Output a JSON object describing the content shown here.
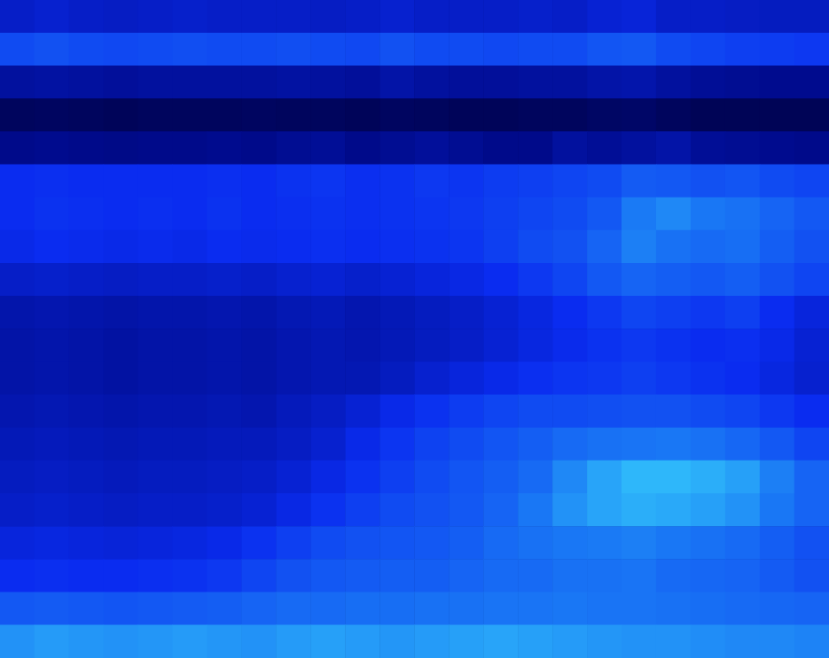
{
  "chart_data": {
    "type": "heatmap",
    "tick_labels": false,
    "color_range": [
      0,
      10
    ],
    "cells": [
      [
        4,
        4.2,
        4,
        3.9,
        4,
        4.1,
        4,
        4,
        4,
        3.9,
        4,
        4.2,
        4,
        4,
        4,
        4.1,
        4,
        4.3,
        4.4,
        4,
        4,
        3.9,
        3.8,
        3.8
      ],
      [
        6,
        6.2,
        6,
        5.9,
        6,
        6.1,
        6,
        6,
        6.1,
        6,
        5.9,
        6.2,
        6,
        6,
        5.9,
        6,
        6,
        6.3,
        6.4,
        6,
        5.8,
        5.6,
        5.5,
        5.4
      ],
      [
        3,
        3.1,
        3,
        2.9,
        3,
        3,
        3,
        3,
        3.1,
        3,
        2.9,
        3.2,
        3,
        2.9,
        2.9,
        3,
        3,
        3.2,
        3.3,
        3,
        2.8,
        2.7,
        2.6,
        2.6
      ],
      [
        1.2,
        1.3,
        1.2,
        1.1,
        1.2,
        1.2,
        1.2,
        1.3,
        1.2,
        1.2,
        1.1,
        1.3,
        1.2,
        1.1,
        1.1,
        1.2,
        1.2,
        1.4,
        1.5,
        1.2,
        1,
        1,
        1,
        1
      ],
      [
        2.5,
        2.6,
        2.5,
        2.4,
        2.5,
        2.5,
        2.6,
        2.5,
        2.7,
        2.8,
        2.5,
        2.7,
        2.9,
        2.7,
        2.5,
        2.5,
        3,
        2.8,
        3,
        3.2,
        2.8,
        2.7,
        2.6,
        2.5
      ],
      [
        5,
        5.1,
        5,
        5,
        5,
        5,
        5.1,
        5,
        5.2,
        5.3,
        5.1,
        5.2,
        5.4,
        5.3,
        5.5,
        5.6,
        5.8,
        6,
        6.5,
        6.4,
        6.2,
        6.3,
        6,
        5.8
      ],
      [
        5,
        5.2,
        5.1,
        5,
        5.1,
        5,
        5.2,
        5,
        5.1,
        5.2,
        5.1,
        5.2,
        5.3,
        5.4,
        5.6,
        5.8,
        6,
        6.4,
        7.5,
        7.8,
        7.4,
        7.2,
        6.8,
        6.4
      ],
      [
        4.8,
        5,
        4.9,
        4.8,
        4.9,
        4.8,
        5,
        4.9,
        5,
        5.1,
        5,
        5.1,
        5.2,
        5.3,
        5.6,
        6,
        6.2,
        6.8,
        7.6,
        7.2,
        7,
        7.1,
        6.6,
        6.2
      ],
      [
        4,
        4.1,
        4,
        3.9,
        4,
        4,
        4.1,
        4,
        4.2,
        4.3,
        4.1,
        4.3,
        4.5,
        4.7,
        5,
        5.4,
        5.8,
        6.4,
        6.8,
        6.6,
        6.4,
        6.6,
        6.2,
        5.8
      ],
      [
        3.3,
        3.4,
        3.3,
        3.2,
        3.3,
        3.3,
        3.4,
        3.3,
        3.5,
        3.6,
        3.4,
        3.6,
        3.8,
        4,
        4.3,
        4.6,
        5,
        5.4,
        5.8,
        5.6,
        5.4,
        5.6,
        5,
        4.5
      ],
      [
        3.2,
        3.3,
        3.2,
        3.1,
        3.2,
        3.2,
        3.3,
        3.2,
        3.4,
        3.5,
        3.4,
        3.6,
        3.8,
        4,
        4.3,
        4.6,
        4.9,
        5.2,
        5.4,
        5.2,
        5,
        5.1,
        4.8,
        4.3
      ],
      [
        3.2,
        3.3,
        3.2,
        3.1,
        3.2,
        3.2,
        3.3,
        3.2,
        3.4,
        3.5,
        3.5,
        3.8,
        4.2,
        4.5,
        4.8,
        5.1,
        5.3,
        5.4,
        5.6,
        5.4,
        5.2,
        5,
        4.6,
        4.2
      ],
      [
        3.4,
        3.5,
        3.4,
        3.3,
        3.4,
        3.4,
        3.5,
        3.4,
        3.7,
        3.9,
        4.3,
        4.8,
        5.2,
        5.5,
        5.8,
        6,
        6,
        6.1,
        6.2,
        6.2,
        6,
        5.8,
        5.4,
        5
      ],
      [
        3.6,
        3.7,
        3.6,
        3.5,
        3.6,
        3.6,
        3.7,
        3.7,
        3.9,
        4.2,
        4.8,
        5.3,
        5.7,
        6,
        6.3,
        6.6,
        7,
        7.2,
        7.3,
        7.4,
        7.2,
        6.9,
        6.4,
        5.8
      ],
      [
        3.8,
        3.9,
        3.8,
        3.7,
        3.8,
        3.8,
        3.9,
        4,
        4.3,
        4.7,
        5.2,
        5.6,
        6,
        6.3,
        6.6,
        7,
        7.8,
        8.4,
        8.8,
        8.8,
        8.6,
        8.3,
        7.6,
        6.8
      ],
      [
        4,
        4.1,
        4,
        3.9,
        4,
        4,
        4.1,
        4.3,
        4.7,
        5.2,
        5.6,
        6,
        6.2,
        6.4,
        6.8,
        7.4,
        8,
        8.4,
        8.6,
        8.5,
        8.3,
        8,
        7.4,
        6.8
      ],
      [
        4.5,
        4.6,
        4.5,
        4.4,
        4.5,
        4.6,
        4.8,
        5.2,
        5.6,
        6,
        6.2,
        6.3,
        6.4,
        6.6,
        7,
        7.2,
        7.4,
        7.5,
        7.6,
        7.4,
        7.2,
        7,
        6.6,
        6.2
      ],
      [
        5,
        5.1,
        5,
        5,
        5.1,
        5.2,
        5.4,
        5.8,
        6.2,
        6.4,
        6.5,
        6.6,
        6.6,
        6.8,
        7,
        7,
        7.2,
        7.2,
        7.3,
        7,
        6.9,
        6.8,
        6.5,
        6.2
      ],
      [
        6.4,
        6.5,
        6.4,
        6.3,
        6.4,
        6.5,
        6.6,
        6.8,
        7,
        7,
        7.1,
        7.1,
        7.2,
        7.2,
        7.3,
        7.3,
        7.4,
        7.3,
        7.3,
        7.2,
        7.1,
        7,
        6.9,
        6.8
      ],
      [
        8,
        8.2,
        8.1,
        8,
        8.1,
        8.2,
        8.1,
        8,
        8.2,
        8.3,
        8.2,
        8.1,
        8.2,
        8.3,
        8.4,
        8.3,
        8.2,
        8.1,
        8,
        8,
        7.9,
        7.8,
        7.8,
        7.7
      ]
    ]
  }
}
